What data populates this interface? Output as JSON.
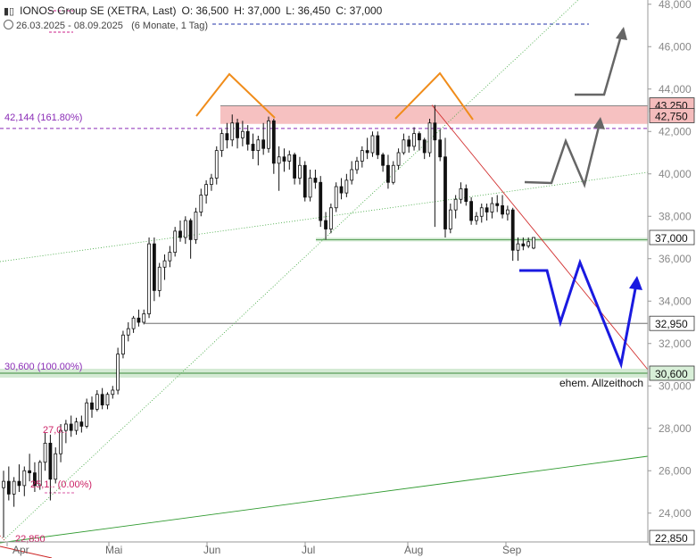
{
  "header": {
    "title": "IONOS Group SE (XETRA, Last)",
    "open": "O: 36,500",
    "high": "H: 37,000",
    "low": "L: 36,450",
    "close": "C: 37,000",
    "range": "26.03.2025 - 08.09.2025",
    "period": "(6 Monate, 1 Tag)"
  },
  "chart_data": {
    "type": "candlestick",
    "x_ticks": [
      "Apr",
      "Mai",
      "Jun",
      "Jul",
      "Aug",
      "Sep"
    ],
    "y_ticks": [
      "22,850",
      "24,000",
      "26,000",
      "28,000",
      "30,000",
      "30,600",
      "32,000",
      "32,950",
      "34,000",
      "36,000",
      "37,000",
      "38,000",
      "40,000",
      "42,000",
      "42,750",
      "43,250",
      "44,000",
      "46,000",
      "48,000"
    ],
    "ylim": [
      22.6,
      48.2
    ],
    "price_badges": [
      {
        "label": "43,250",
        "value": 43.25,
        "color": "#f4bcbc"
      },
      {
        "label": "42,750",
        "value": 42.75,
        "color": "#f4bcbc"
      },
      {
        "label": "37,000",
        "value": 37.0,
        "color": "#ffffff"
      },
      {
        "label": "32,950",
        "value": 32.95,
        "color": "#ffffff"
      },
      {
        "label": "30,600",
        "value": 30.6,
        "color": "#d8efd8"
      },
      {
        "label": "22,850",
        "value": 22.85,
        "color": "#ffffff"
      }
    ],
    "annotations": {
      "fib_161": "42,144 (161.80%)",
      "fib_100": "30,600 (100.00%)",
      "fib_27": "27,0..",
      "fib_0": "25,1.. (0.00%)",
      "low_label": "22,850",
      "ath_label": "ehem. Allzeithoch"
    },
    "candles": [
      [
        25.2,
        26.0,
        22.85,
        25.5
      ],
      [
        25.5,
        26.2,
        24.6,
        24.9
      ],
      [
        24.9,
        25.7,
        24.3,
        25.5
      ],
      [
        25.5,
        26.3,
        25.0,
        25.3
      ],
      [
        25.3,
        26.2,
        24.8,
        26.0
      ],
      [
        26.0,
        26.8,
        25.5,
        25.9
      ],
      [
        25.9,
        26.4,
        25.0,
        25.3
      ],
      [
        25.3,
        26.5,
        25.1,
        26.4
      ],
      [
        26.4,
        27.8,
        26.0,
        27.3
      ],
      [
        27.3,
        27.7,
        24.6,
        25.6
      ],
      [
        25.6,
        27.1,
        25.4,
        26.8
      ],
      [
        26.8,
        28.2,
        26.4,
        27.9
      ],
      [
        27.9,
        28.4,
        27.3,
        28.2
      ],
      [
        28.2,
        28.6,
        27.6,
        27.9
      ],
      [
        27.9,
        28.5,
        27.7,
        28.3
      ],
      [
        28.3,
        28.6,
        27.8,
        28.1
      ],
      [
        28.1,
        29.4,
        28.0,
        29.2
      ],
      [
        29.2,
        29.5,
        28.5,
        28.9
      ],
      [
        28.9,
        29.8,
        28.8,
        29.6
      ],
      [
        29.6,
        29.9,
        28.9,
        29.1
      ],
      [
        29.1,
        29.7,
        28.9,
        29.6
      ],
      [
        29.6,
        30.0,
        29.4,
        29.8
      ],
      [
        29.8,
        31.8,
        29.6,
        31.5
      ],
      [
        31.5,
        32.6,
        31.3,
        32.4
      ],
      [
        32.4,
        33.0,
        32.1,
        32.7
      ],
      [
        32.7,
        33.3,
        32.5,
        33.2
      ],
      [
        33.2,
        33.6,
        32.8,
        33.0
      ],
      [
        33.0,
        33.6,
        32.9,
        33.4
      ],
      [
        33.4,
        37.0,
        33.2,
        36.7
      ],
      [
        36.7,
        37.0,
        34.0,
        34.5
      ],
      [
        34.5,
        35.8,
        34.2,
        35.6
      ],
      [
        35.6,
        36.2,
        35.0,
        35.9
      ],
      [
        35.9,
        36.6,
        35.6,
        36.3
      ],
      [
        36.3,
        37.5,
        36.1,
        37.3
      ],
      [
        37.3,
        37.8,
        36.8,
        37.0
      ],
      [
        37.0,
        38.0,
        36.7,
        37.8
      ],
      [
        37.8,
        37.9,
        36.0,
        36.9
      ],
      [
        36.9,
        38.4,
        36.7,
        38.2
      ],
      [
        38.2,
        39.3,
        38.0,
        39.0
      ],
      [
        39.0,
        39.7,
        38.6,
        39.5
      ],
      [
        39.5,
        40.0,
        39.2,
        39.8
      ],
      [
        39.8,
        41.3,
        39.5,
        41.1
      ],
      [
        41.1,
        42.1,
        40.8,
        41.9
      ],
      [
        41.9,
        42.4,
        41.2,
        41.6
      ],
      [
        41.6,
        42.8,
        41.3,
        42.4
      ],
      [
        42.4,
        42.6,
        41.2,
        41.7
      ],
      [
        41.7,
        42.5,
        41.3,
        42.0
      ],
      [
        42.0,
        42.3,
        41.1,
        41.4
      ],
      [
        41.4,
        41.9,
        40.7,
        41.1
      ],
      [
        41.1,
        41.8,
        40.4,
        41.6
      ],
      [
        41.6,
        42.4,
        40.9,
        41.2
      ],
      [
        41.2,
        42.7,
        41.0,
        42.5
      ],
      [
        42.5,
        42.6,
        40.0,
        40.5
      ],
      [
        40.5,
        41.3,
        39.2,
        40.8
      ],
      [
        40.8,
        41.2,
        40.1,
        40.6
      ],
      [
        40.6,
        41.1,
        40.2,
        40.9
      ],
      [
        40.9,
        41.0,
        39.5,
        39.8
      ],
      [
        39.8,
        40.8,
        39.5,
        40.4
      ],
      [
        40.4,
        40.6,
        38.7,
        38.9
      ],
      [
        38.9,
        40.2,
        38.7,
        39.8
      ],
      [
        39.8,
        40.2,
        39.3,
        39.6
      ],
      [
        39.6,
        39.9,
        37.5,
        37.8
      ],
      [
        37.8,
        38.2,
        36.9,
        37.4
      ],
      [
        37.4,
        38.6,
        37.2,
        38.4
      ],
      [
        38.4,
        39.6,
        38.2,
        39.4
      ],
      [
        39.4,
        39.8,
        38.8,
        39.1
      ],
      [
        39.1,
        40.0,
        38.9,
        39.7
      ],
      [
        39.7,
        40.6,
        39.5,
        40.2
      ],
      [
        40.2,
        40.8,
        40.0,
        40.6
      ],
      [
        40.6,
        41.3,
        40.3,
        41.1
      ],
      [
        41.1,
        41.7,
        40.7,
        41.0
      ],
      [
        41.0,
        42.0,
        40.8,
        41.8
      ],
      [
        41.8,
        42.0,
        40.7,
        40.9
      ],
      [
        40.9,
        41.0,
        40.1,
        40.4
      ],
      [
        40.4,
        40.9,
        39.3,
        39.6
      ],
      [
        39.6,
        40.6,
        39.5,
        40.4
      ],
      [
        40.4,
        41.2,
        40.2,
        41.0
      ],
      [
        41.0,
        41.9,
        40.9,
        41.6
      ],
      [
        41.6,
        41.8,
        41.0,
        41.3
      ],
      [
        41.3,
        42.2,
        41.1,
        41.9
      ],
      [
        41.9,
        42.0,
        41.1,
        41.6
      ],
      [
        41.6,
        41.7,
        40.7,
        41.0
      ],
      [
        41.0,
        42.6,
        40.8,
        42.4
      ],
      [
        42.4,
        43.25,
        37.5,
        41.6
      ],
      [
        41.6,
        42.1,
        40.6,
        40.8
      ],
      [
        40.8,
        41.7,
        37.0,
        37.4
      ],
      [
        37.4,
        38.6,
        37.2,
        38.3
      ],
      [
        38.3,
        39.0,
        37.9,
        38.8
      ],
      [
        38.8,
        39.6,
        38.6,
        39.3
      ],
      [
        39.3,
        39.5,
        38.5,
        38.7
      ],
      [
        38.7,
        38.9,
        37.6,
        37.8
      ],
      [
        37.8,
        38.2,
        37.6,
        38.0
      ],
      [
        38.0,
        38.6,
        37.7,
        38.4
      ],
      [
        38.4,
        38.6,
        37.8,
        38.2
      ],
      [
        38.2,
        38.9,
        37.9,
        38.6
      ],
      [
        38.6,
        39.0,
        38.2,
        38.5
      ],
      [
        38.5,
        39.0,
        37.9,
        38.1
      ],
      [
        38.1,
        38.5,
        37.8,
        38.3
      ],
      [
        38.3,
        38.4,
        35.9,
        36.4
      ],
      [
        36.4,
        37.0,
        35.9,
        36.7
      ],
      [
        36.7,
        37.0,
        36.4,
        36.6
      ],
      [
        36.6,
        37.0,
        36.5,
        36.8
      ],
      [
        36.5,
        37.0,
        36.45,
        37.0
      ]
    ]
  }
}
